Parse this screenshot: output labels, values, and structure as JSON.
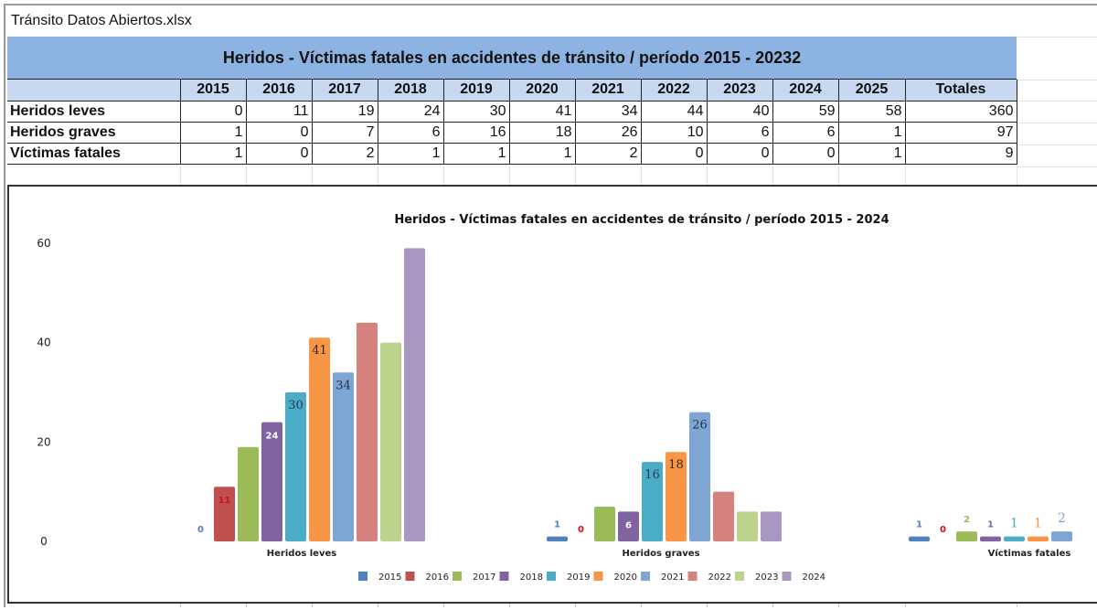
{
  "file": {
    "title": "Tránsito Datos Abiertos.xlsx"
  },
  "sheet": {
    "title": "Heridos - Víctimas fatales en accidentes de tránsito / período 2015 - 20232",
    "columns": [
      "2015",
      "2016",
      "2017",
      "2018",
      "2019",
      "2020",
      "2021",
      "2022",
      "2023",
      "2024",
      "2025",
      "Totales"
    ],
    "rows": [
      {
        "label": "Heridos leves",
        "values": [
          "0",
          "11",
          "19",
          "24",
          "30",
          "41",
          "34",
          "44",
          "40",
          "59",
          "58",
          "360"
        ]
      },
      {
        "label": "Heridos graves",
        "values": [
          "1",
          "0",
          "7",
          "6",
          "16",
          "18",
          "26",
          "10",
          "6",
          "6",
          "1",
          "97"
        ]
      },
      {
        "label": "Víctimas fatales",
        "values": [
          "1",
          "0",
          "2",
          "1",
          "1",
          "1",
          "2",
          "0",
          "0",
          "0",
          "1",
          "9"
        ]
      }
    ]
  },
  "chart_data": {
    "type": "bar",
    "title": "Heridos - Víctimas fatales en accidentes de tránsito / período 2015 - 2024",
    "categories": [
      "Heridos leves",
      "Heridos graves",
      "Víctimas fatales"
    ],
    "xlabel": "",
    "ylabel": "",
    "ylim": [
      0,
      60
    ],
    "yticks": [
      "0",
      "20",
      "40",
      "60"
    ],
    "grid": false,
    "legend_position": "bottom",
    "series": [
      {
        "name": "2015",
        "color": "#4f81bd",
        "values": [
          0,
          1,
          1
        ],
        "labels": [
          "0",
          "1",
          "1"
        ],
        "label_color": "#4f81bd"
      },
      {
        "name": "2016",
        "color": "#c0504d",
        "values": [
          11,
          0,
          0
        ],
        "labels": [
          "11",
          "0",
          "0"
        ],
        "label_color": "#c0171a"
      },
      {
        "name": "2017",
        "color": "#9bbb59",
        "values": [
          19,
          7,
          2
        ],
        "labels": [
          "",
          "",
          "2"
        ],
        "label_color": "#9bbb59"
      },
      {
        "name": "2018",
        "color": "#8064a2",
        "values": [
          24,
          6,
          1
        ],
        "labels": [
          "24",
          "6",
          "1"
        ],
        "label_color": "#ffffff"
      },
      {
        "name": "2019",
        "color": "#4bacc6",
        "values": [
          30,
          16,
          1
        ],
        "labels": [
          "30",
          "16",
          "1"
        ],
        "label_color": "#1f3855"
      },
      {
        "name": "2020",
        "color": "#f79646",
        "values": [
          41,
          18,
          1
        ],
        "labels": [
          "41",
          "18",
          "1"
        ],
        "label_color": "#3a2410"
      },
      {
        "name": "2021",
        "color": "#7fa6d2",
        "values": [
          34,
          26,
          2
        ],
        "labels": [
          "34",
          "26",
          "2"
        ],
        "label_color": "#1f3050"
      },
      {
        "name": "2022",
        "color": "#d6827f",
        "values": [
          44,
          10,
          null
        ],
        "labels": [
          "",
          "",
          ""
        ],
        "label_color": "#d6827f"
      },
      {
        "name": "2023",
        "color": "#bcd38d",
        "values": [
          40,
          6,
          null
        ],
        "labels": [
          "",
          "",
          ""
        ],
        "label_color": "#bcd38d"
      },
      {
        "name": "2024",
        "color": "#a797c1",
        "values": [
          59,
          6,
          null
        ],
        "labels": [
          "",
          "",
          ""
        ],
        "label_color": "#a797c1"
      }
    ]
  }
}
